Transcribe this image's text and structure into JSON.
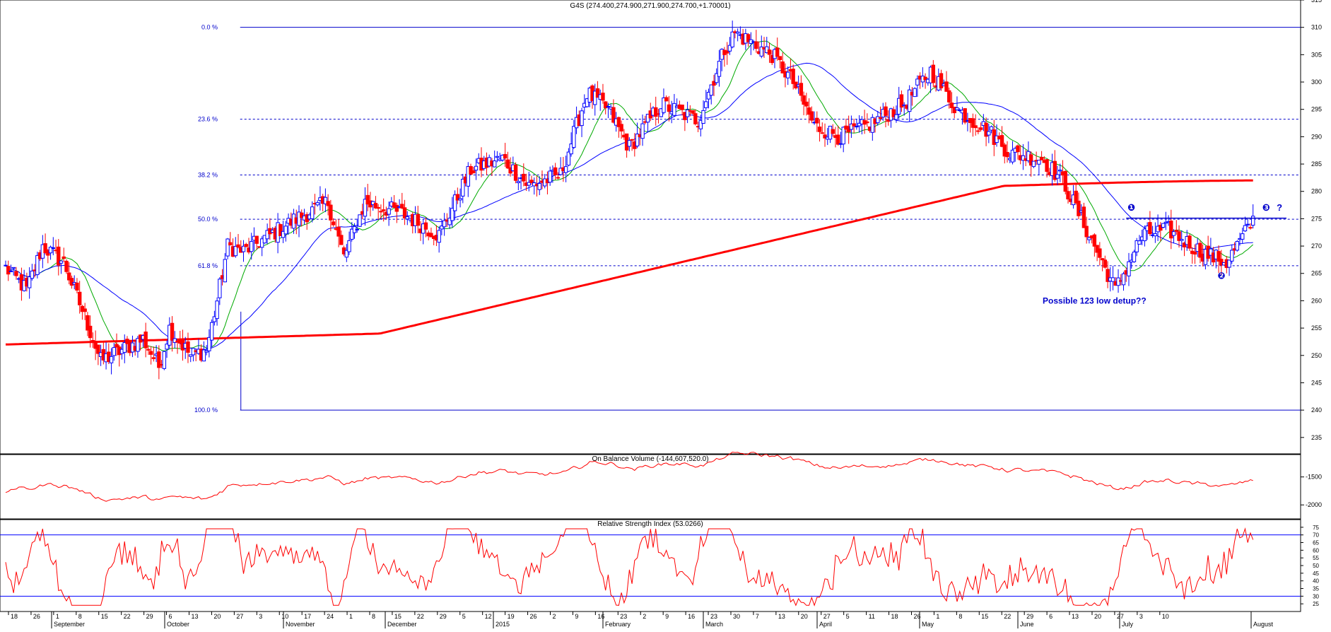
{
  "colors": {
    "background": "#ffffff",
    "frame": "#000000",
    "up_candle": "#0000ff",
    "down_candle": "#ff0000",
    "ma_short": "#00aa00",
    "ma_medium": "#0000ff",
    "ma_long": "#ff0000",
    "fib_line": "#0000cc",
    "indicator_line": "#ff0000",
    "rsi_band": "#0000ff",
    "annotation": "#0000cc"
  },
  "chart_data": [
    {
      "type": "candlestick",
      "title": "G4S (274.400,274.900,271.900,274.700,+1.70001)",
      "y_axis_position": "right",
      "ylim": [
        232,
        315
      ],
      "y_ticks": [
        235,
        240,
        245,
        250,
        255,
        260,
        265,
        270,
        275,
        280,
        285,
        290,
        295,
        300,
        305,
        310,
        315
      ],
      "grid": false,
      "fibonacci": {
        "levels": [
          {
            "label": "0.0 %",
            "value": 310.0,
            "style": "solid"
          },
          {
            "label": "23.6 %",
            "value": 293.2,
            "style": "dashed"
          },
          {
            "label": "38.2 %",
            "value": 283.0,
            "style": "dashed"
          },
          {
            "label": "50.0 %",
            "value": 274.9,
            "style": "dashed"
          },
          {
            "label": "61.8 %",
            "value": 266.4,
            "style": "dashed"
          },
          {
            "label": "100.0 %",
            "value": 240.0,
            "style": "solid"
          }
        ]
      },
      "series": [
        {
          "role": "price",
          "kind": "candlestick",
          "description_from": "generated_sequence"
        },
        {
          "role": "ma_short",
          "kind": "line"
        },
        {
          "role": "ma_medium",
          "kind": "line"
        },
        {
          "role": "ma_long",
          "kind": "line"
        }
      ],
      "close_path": [
        [
          0,
          266
        ],
        [
          8,
          262
        ],
        [
          14,
          270
        ],
        [
          22,
          267
        ],
        [
          30,
          257
        ],
        [
          36,
          249
        ],
        [
          44,
          251
        ],
        [
          52,
          253
        ],
        [
          58,
          248
        ],
        [
          62,
          255
        ],
        [
          70,
          250
        ],
        [
          76,
          251
        ],
        [
          80,
          260
        ],
        [
          84,
          270
        ],
        [
          90,
          269
        ],
        [
          100,
          272
        ],
        [
          110,
          275
        ],
        [
          122,
          278
        ],
        [
          128,
          268
        ],
        [
          136,
          278
        ],
        [
          150,
          276
        ],
        [
          164,
          272
        ],
        [
          176,
          284
        ],
        [
          188,
          286
        ],
        [
          198,
          281
        ],
        [
          210,
          283
        ],
        [
          220,
          298
        ],
        [
          228,
          295
        ],
        [
          236,
          288
        ],
        [
          248,
          296
        ],
        [
          262,
          293
        ],
        [
          272,
          306
        ],
        [
          276,
          309
        ],
        [
          290,
          305
        ],
        [
          298,
          300
        ],
        [
          306,
          292
        ],
        [
          316,
          290
        ],
        [
          326,
          292
        ],
        [
          340,
          296
        ],
        [
          350,
          302
        ],
        [
          360,
          295
        ],
        [
          372,
          291
        ],
        [
          380,
          287
        ],
        [
          392,
          286
        ],
        [
          400,
          282
        ],
        [
          406,
          276
        ],
        [
          414,
          268
        ],
        [
          420,
          262
        ],
        [
          430,
          272
        ],
        [
          440,
          273
        ],
        [
          452,
          269
        ],
        [
          462,
          267
        ],
        [
          472,
          274.7
        ]
      ],
      "annotations": [
        {
          "text": "❶",
          "date_index": 426,
          "value": 276.5
        },
        {
          "text": "❷",
          "date_index": 460,
          "value": 264.0
        },
        {
          "text": "❸",
          "date_index": 477,
          "value": 276.5
        },
        {
          "text": "?",
          "date_index": 482,
          "value": 276.5
        },
        {
          "text": "Possible 123 low detup??",
          "date_index": 412,
          "value": 259.5
        }
      ]
    },
    {
      "type": "line",
      "title": "On Balance Volume (-144,607,520.0)",
      "y_axis_position": "right",
      "ylim": [
        -2250,
        -1100
      ],
      "y_ticks": [
        -1500,
        -2000
      ],
      "values_from": "generated_sequence"
    },
    {
      "type": "line",
      "title": "Relative Strength Index (53.0266)",
      "y_axis_position": "right",
      "ylim": [
        20,
        80
      ],
      "y_ticks": [
        25,
        30,
        35,
        40,
        45,
        50,
        55,
        60,
        65,
        70,
        75
      ],
      "bands": [
        30,
        70
      ],
      "values_from": "generated_sequence"
    }
  ],
  "x_axis": {
    "day_ticks": [
      "18",
      "26",
      "1",
      "8",
      "15",
      "22",
      "29",
      "6",
      "13",
      "20",
      "27",
      "3",
      "10",
      "17",
      "24",
      "1",
      "8",
      "15",
      "22",
      "29",
      "5",
      "12",
      "19",
      "26",
      "2",
      "9",
      "16",
      "23",
      "2",
      "9",
      "16",
      "23",
      "30",
      "7",
      "13",
      "20",
      "27",
      "5",
      "11",
      "18",
      "26",
      "1",
      "8",
      "15",
      "22",
      "29",
      "6",
      "13",
      "20",
      "27",
      "3",
      "10"
    ],
    "month_labels": [
      "September",
      "October",
      "November",
      "December",
      "2015",
      "February",
      "March",
      "April",
      "May",
      "June",
      "July",
      "August"
    ]
  }
}
